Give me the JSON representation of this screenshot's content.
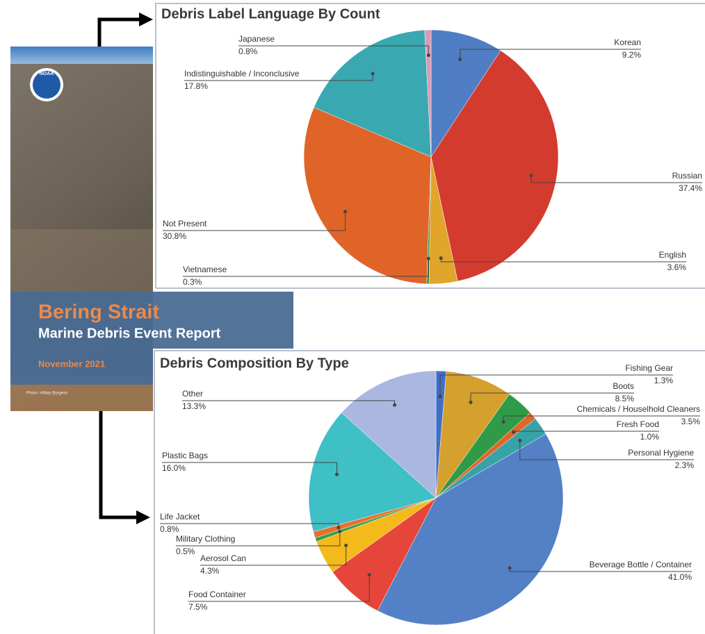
{
  "cover": {
    "logo": "NOAA",
    "title": "Bering Strait",
    "subtitle": "Marine Debris Event Report",
    "date": "November 2021",
    "credit": "Photo: Hillary Burgess"
  },
  "chart_data": [
    {
      "type": "pie",
      "title": "Debris Label Language By Count",
      "categories": [
        "Korean",
        "Russian",
        "English",
        "Vietnamese",
        "Not Present",
        "Indistinguishable / Inconclusive",
        "Japanese"
      ],
      "values": [
        9.2,
        37.4,
        3.6,
        0.3,
        30.8,
        17.8,
        0.8
      ],
      "value_labels": [
        "9.2%",
        "37.4%",
        "3.6%",
        "0.3%",
        "30.8%",
        "17.8%",
        "0.8%"
      ],
      "colors": [
        "#4f7ec4",
        "#d33b2e",
        "#e0a52a",
        "#3a9a4a",
        "#e06428",
        "#3aa8b0",
        "#d99ab8"
      ]
    },
    {
      "type": "pie",
      "title": "Debris Composition By Type",
      "categories": [
        "Fishing Gear",
        "Boots",
        "Chemicals / Houselhold Cleaners",
        "Fresh Food",
        "Personal Hygiene",
        "Beverage Bottle / Container",
        "Food Container",
        "Aerosol Can",
        "Military Clothing",
        "Life Jacket",
        "Plastic Bags",
        "Other"
      ],
      "values": [
        1.3,
        8.5,
        3.5,
        1.0,
        2.3,
        41.0,
        7.5,
        4.3,
        0.5,
        0.8,
        16.0,
        13.3
      ],
      "value_labels": [
        "1.3%",
        "8.5%",
        "3.5%",
        "1.0%",
        "2.3%",
        "41.0%",
        "7.5%",
        "4.3%",
        "0.5%",
        "0.8%",
        "16.0%",
        "13.3%"
      ],
      "colors": [
        "#3f6fc6",
        "#d4a02e",
        "#2f9a48",
        "#e0672a",
        "#37a3a8",
        "#5480c6",
        "#e5453a",
        "#f4b91a",
        "#3c9e4c",
        "#e8702c",
        "#3fbfc6",
        "#aab8df"
      ]
    }
  ]
}
